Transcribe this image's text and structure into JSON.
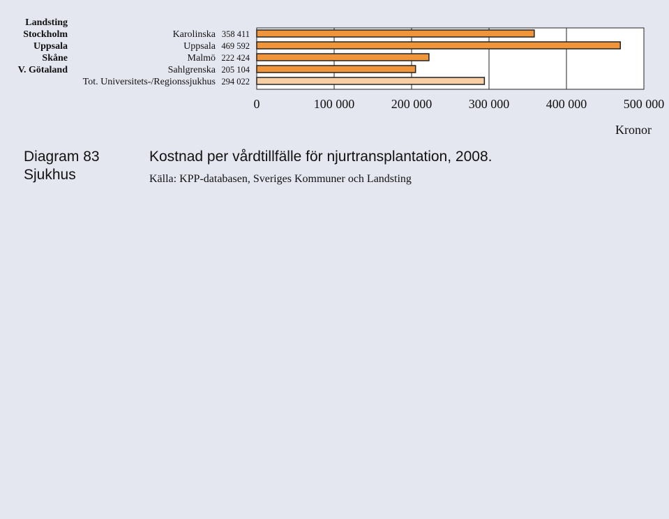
{
  "chart_data": {
    "type": "bar",
    "orientation": "horizontal",
    "title": "Kostnad per vårdtillfälle för njurtransplantation, 2008.",
    "source": "Källa: KPP-databasen, Sveriges Kommuner och Landsting",
    "diagram_number": "Diagram 83",
    "diagram_subject": "Sjukhus",
    "region_header": "Landsting",
    "regions": [
      "Stockholm",
      "Uppsala",
      "Skåne",
      "V. Götaland"
    ],
    "categories": [
      "Karolinska",
      "Uppsala",
      "Malmö",
      "Sahlgrenska",
      "Tot. Universitets-/Regionssjukhus"
    ],
    "values": [
      358411,
      469592,
      222424,
      205104,
      294022
    ],
    "value_labels": [
      "358 411",
      "469 592",
      "222 424",
      "205 104",
      "294 022"
    ],
    "bar_colors": [
      "#f0953a",
      "#f0953a",
      "#f0953a",
      "#f0953a",
      "#f8cfa4"
    ],
    "xlim": [
      0,
      500000
    ],
    "xticks": [
      0,
      100000,
      200000,
      300000,
      400000,
      500000
    ],
    "xtick_labels": [
      "0",
      "100 000",
      "200 000",
      "300 000",
      "400 000",
      "500 000"
    ],
    "xlabel": "Kronor",
    "grid": true
  }
}
